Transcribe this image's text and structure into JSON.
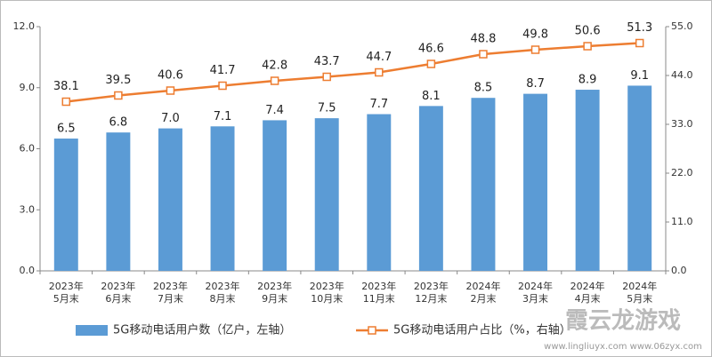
{
  "chart_data": {
    "type": "bar-line",
    "categories": [
      [
        "2023年",
        "5月末"
      ],
      [
        "2023年",
        "6月末"
      ],
      [
        "2023年",
        "7月末"
      ],
      [
        "2023年",
        "8月末"
      ],
      [
        "2023年",
        "9月末"
      ],
      [
        "2023年",
        "10月末"
      ],
      [
        "2023年",
        "11月末"
      ],
      [
        "2023年",
        "12月末"
      ],
      [
        "2024年",
        "2月末"
      ],
      [
        "2024年",
        "3月末"
      ],
      [
        "2024年",
        "4月末"
      ],
      [
        "2024年",
        "5月末"
      ]
    ],
    "series": [
      {
        "name": "5G移动电话用户数（亿户，左轴）",
        "type": "bar",
        "color": "#5b9bd5",
        "values": [
          6.5,
          6.8,
          7.0,
          7.1,
          7.4,
          7.5,
          7.7,
          8.1,
          8.5,
          8.7,
          8.9,
          9.1
        ],
        "value_labels": [
          "6.5",
          "6.8",
          "7.0",
          "7.1",
          "7.4",
          "7.5",
          "7.7",
          "8.1",
          "8.5",
          "8.7",
          "8.9",
          "9.1"
        ]
      },
      {
        "name": "5G移动电话用户占比（%，右轴）",
        "type": "line",
        "axis": "y2",
        "color": "#ed7d31",
        "values": [
          38.1,
          39.5,
          40.6,
          41.7,
          42.8,
          43.7,
          44.7,
          46.6,
          48.8,
          49.8,
          50.6,
          51.3
        ]
      }
    ],
    "ylim": [
      0,
      12
    ],
    "yticks": [
      {
        "value": 0,
        "label": "0.0"
      },
      {
        "value": 3,
        "label": "3.0"
      },
      {
        "value": 6,
        "label": "6.0"
      },
      {
        "value": 9,
        "label": "9.0"
      },
      {
        "value": 12,
        "label": "12.0"
      }
    ],
    "y2lim": [
      0,
      55
    ],
    "y2ticks": [
      {
        "value": 0,
        "label": "0.0"
      },
      {
        "value": 11,
        "label": "11.0"
      },
      {
        "value": 22,
        "label": "22.0"
      },
      {
        "value": 33,
        "label": "33.0"
      },
      {
        "value": 44,
        "label": "44.0"
      },
      {
        "value": 55,
        "label": "55.0"
      }
    ],
    "legend": "bottom",
    "watermark": {
      "title": "霞云龙游戏",
      "url": "www.lingliuyx.com  www.06zyx.com"
    }
  }
}
